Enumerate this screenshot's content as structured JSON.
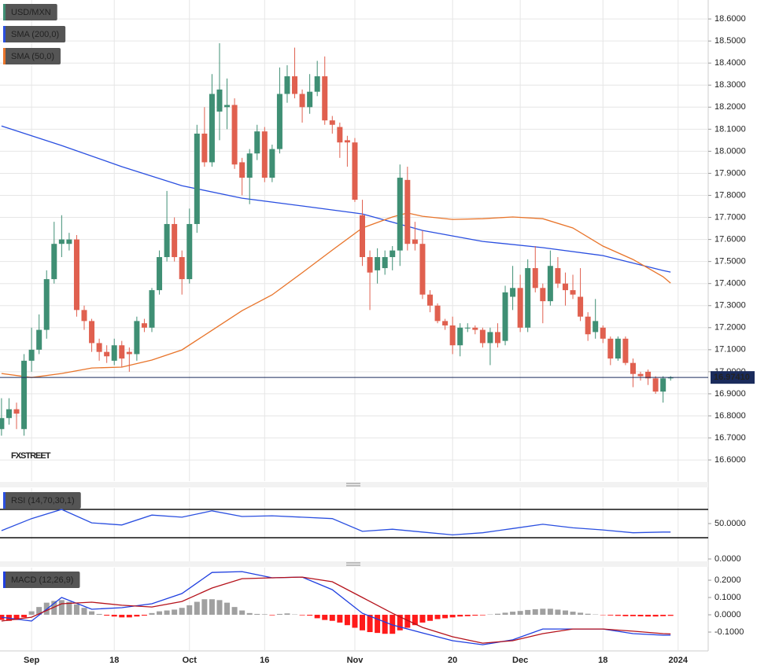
{
  "chart_data": [
    {
      "type": "candlestick",
      "xlim": [
        -0.2,
        94
      ],
      "ylim": [
        16.504,
        18.686
      ],
      "yticks": [
        {
          "value": 16.6,
          "label": "16.6000"
        },
        {
          "value": 16.7,
          "label": "16.7000"
        },
        {
          "value": 16.8,
          "label": "16.8000"
        },
        {
          "value": 16.9,
          "label": "16.9000"
        },
        {
          "value": 17.0,
          "label": "17.0000"
        },
        {
          "value": 17.1,
          "label": "17.1000"
        },
        {
          "value": 17.2,
          "label": "17.2000"
        },
        {
          "value": 17.3,
          "label": "17.3000"
        },
        {
          "value": 17.4,
          "label": "17.4000"
        },
        {
          "value": 17.5,
          "label": "17.5000"
        },
        {
          "value": 17.6,
          "label": "17.6000"
        },
        {
          "value": 17.7,
          "label": "17.7000"
        },
        {
          "value": 17.8,
          "label": "17.8000"
        },
        {
          "value": 17.9,
          "label": "17.9000"
        },
        {
          "value": 18.0,
          "label": "18.0000"
        },
        {
          "value": 18.1,
          "label": "18.1000"
        },
        {
          "value": 18.2,
          "label": "18.2000"
        },
        {
          "value": 18.3,
          "label": "18.3000"
        },
        {
          "value": 18.4,
          "label": "18.4000"
        },
        {
          "value": 18.5,
          "label": "18.5000"
        },
        {
          "value": 18.6,
          "label": "18.6000"
        }
      ],
      "grid": true,
      "watermark": "FXSTREET",
      "last_price": {
        "value": 16.9741,
        "label": "16.97410"
      },
      "last_price_color": "#1a2b5c",
      "series": [
        {
          "name": "USD/MXN",
          "color": "#3f8f74",
          "down_color": "#e0604f",
          "open": [
            16.74,
            16.79,
            16.83,
            16.74,
            17.05,
            17.1,
            17.19,
            17.42,
            17.58,
            17.58,
            17.6,
            17.28,
            17.23,
            17.13,
            17.09,
            17.05,
            17.12,
            17.09,
            17.08,
            17.22,
            17.2,
            17.37,
            17.52,
            17.67,
            17.52,
            17.42,
            17.67,
            18.08,
            17.95,
            18.18,
            18.2,
            18.21,
            17.95,
            17.88,
            17.99,
            18.09,
            17.88,
            18.01,
            18.26,
            18.34,
            18.26,
            18.2,
            18.27,
            18.34,
            18.14,
            18.11,
            18.05,
            18.04,
            17.71,
            17.52,
            17.46,
            17.47,
            17.52,
            17.55,
            17.87,
            17.6,
            17.58,
            17.35,
            17.3,
            17.23,
            17.21,
            17.12,
            17.2,
            17.2,
            17.19,
            17.13,
            17.18,
            17.14,
            17.34,
            17.38,
            17.2,
            17.47,
            17.38,
            17.32,
            17.47,
            17.4,
            17.37,
            17.34,
            17.25,
            17.18,
            17.2,
            17.15,
            17.06,
            17.15,
            17.04,
            16.99,
            17.0,
            16.97,
            16.91,
            16.97
          ],
          "high": [
            16.88,
            16.88,
            16.86,
            17.08,
            17.2,
            17.26,
            17.46,
            17.68,
            17.71,
            17.63,
            17.62,
            17.3,
            17.24,
            17.15,
            17.12,
            17.15,
            17.14,
            17.11,
            17.25,
            17.24,
            17.38,
            17.55,
            17.82,
            17.7,
            17.55,
            17.74,
            18.12,
            18.2,
            18.35,
            18.49,
            18.33,
            18.24,
            17.97,
            18.01,
            18.12,
            18.11,
            18.03,
            18.38,
            18.39,
            18.47,
            18.28,
            18.35,
            18.41,
            18.43,
            18.16,
            18.13,
            18.07,
            18.06,
            17.78,
            17.55,
            17.56,
            17.55,
            17.57,
            17.94,
            17.93,
            17.68,
            17.64,
            17.37,
            17.31,
            17.24,
            17.25,
            17.22,
            17.22,
            17.21,
            17.2,
            17.2,
            17.22,
            17.39,
            17.48,
            17.44,
            17.51,
            17.57,
            17.4,
            17.55,
            17.52,
            17.45,
            17.44,
            17.47,
            17.27,
            17.33,
            17.21,
            17.16,
            17.16,
            17.16,
            17.06,
            17.0,
            17.01,
            16.98,
            16.98,
            16.98
          ],
          "low": [
            16.71,
            16.76,
            16.74,
            16.71,
            17.0,
            17.08,
            17.15,
            17.4,
            17.52,
            17.55,
            17.25,
            17.19,
            17.09,
            17.05,
            17.04,
            17.03,
            17.02,
            17.0,
            17.05,
            17.18,
            17.18,
            17.35,
            17.5,
            17.5,
            17.35,
            17.4,
            17.63,
            17.93,
            17.93,
            18.05,
            18.1,
            17.92,
            17.8,
            17.76,
            17.96,
            17.86,
            17.86,
            17.99,
            18.22,
            18.24,
            18.13,
            18.17,
            18.25,
            18.12,
            18.08,
            17.97,
            17.93,
            17.77,
            17.48,
            17.28,
            17.4,
            17.44,
            17.46,
            17.48,
            17.55,
            17.55,
            17.33,
            17.27,
            17.22,
            17.19,
            17.08,
            17.07,
            17.18,
            17.17,
            17.11,
            17.03,
            17.11,
            17.12,
            17.28,
            17.18,
            17.18,
            17.36,
            17.22,
            17.3,
            17.38,
            17.3,
            17.33,
            17.23,
            17.14,
            17.15,
            17.13,
            17.03,
            17.05,
            17.03,
            16.93,
            16.96,
            16.94,
            16.9,
            16.86,
            16.96
          ],
          "close": [
            16.79,
            16.83,
            16.81,
            17.05,
            17.1,
            17.19,
            17.42,
            17.58,
            17.6,
            17.6,
            17.28,
            17.23,
            17.13,
            17.09,
            17.07,
            17.12,
            17.06,
            17.08,
            17.23,
            17.2,
            17.37,
            17.52,
            17.67,
            17.52,
            17.42,
            17.67,
            18.08,
            17.95,
            18.26,
            18.28,
            18.21,
            17.94,
            17.88,
            17.99,
            18.09,
            17.88,
            18.01,
            18.26,
            18.34,
            18.26,
            18.2,
            18.27,
            18.34,
            18.14,
            18.12,
            18.04,
            18.04,
            17.78,
            17.52,
            17.45,
            17.52,
            17.52,
            17.55,
            17.88,
            17.58,
            17.58,
            17.35,
            17.3,
            17.23,
            17.21,
            17.12,
            17.2,
            17.2,
            17.19,
            17.13,
            17.18,
            17.13,
            17.36,
            17.38,
            17.2,
            17.47,
            17.38,
            17.32,
            17.48,
            17.4,
            17.37,
            17.35,
            17.25,
            17.17,
            17.23,
            17.15,
            17.06,
            17.15,
            17.04,
            16.99,
            16.98,
            16.97,
            16.91,
            16.97,
            16.974
          ]
        },
        {
          "name": "SMA (200,0)",
          "color": "#2a4fe0",
          "x": [
            0,
            8,
            16,
            24,
            32,
            40,
            48,
            56,
            64,
            72,
            80,
            88,
            89
          ],
          "values": [
            18.115,
            18.026,
            17.93,
            17.844,
            17.787,
            17.752,
            17.716,
            17.641,
            17.591,
            17.563,
            17.527,
            17.459,
            17.452
          ]
        },
        {
          "name": "SMA (50,0)",
          "color": "#e8742a",
          "x": [
            0,
            4,
            8,
            12,
            16,
            20,
            24,
            28,
            32,
            36,
            40,
            44,
            48,
            52,
            54,
            56,
            60,
            64,
            68,
            72,
            76,
            80,
            84,
            88,
            89
          ],
          "values": [
            16.992,
            16.974,
            16.992,
            17.017,
            17.021,
            17.053,
            17.099,
            17.188,
            17.277,
            17.349,
            17.449,
            17.552,
            17.652,
            17.702,
            17.72,
            17.705,
            17.691,
            17.694,
            17.702,
            17.694,
            17.652,
            17.57,
            17.509,
            17.431,
            17.402
          ]
        }
      ]
    },
    {
      "type": "line",
      "xlim": [
        -0.2,
        94
      ],
      "ylim": [
        -3.3,
        100
      ],
      "yticks": [
        {
          "value": 50,
          "label": "50.0000"
        },
        {
          "value": 0,
          "label": "0.0000"
        }
      ],
      "levels": [
        70,
        30
      ],
      "series": [
        {
          "name": "RSI (14,70,30,1)",
          "color": "#2a4fe0",
          "x": [
            0,
            4,
            8,
            12,
            16,
            20,
            24,
            28,
            32,
            36,
            40,
            44,
            48,
            52,
            56,
            60,
            64,
            68,
            72,
            76,
            80,
            84,
            88,
            89
          ],
          "values": [
            40,
            57,
            70,
            51,
            48,
            62,
            59,
            68,
            60,
            61,
            59,
            57,
            39,
            42,
            38,
            34,
            37,
            43,
            49,
            44,
            41,
            37,
            38,
            38
          ]
        }
      ]
    },
    {
      "type": "macd",
      "xlim": [
        -0.2,
        94
      ],
      "ylim": [
        -0.209,
        0.273
      ],
      "yticks": [
        {
          "value": 0.2,
          "label": "0.2000"
        },
        {
          "value": 0.1,
          "label": "0.1000"
        },
        {
          "value": 0,
          "label": "0.0000"
        },
        {
          "value": -0.1,
          "label": "-0.1000"
        }
      ],
      "xticks": [
        {
          "value": 4,
          "label": "Sep"
        },
        {
          "value": 15,
          "label": "18"
        },
        {
          "value": 25,
          "label": "Oct"
        },
        {
          "value": 35,
          "label": "16"
        },
        {
          "value": 47,
          "label": "Nov"
        },
        {
          "value": 60,
          "label": "20"
        },
        {
          "value": 69,
          "label": "Dec"
        },
        {
          "value": 80,
          "label": "18"
        },
        {
          "value": 90,
          "label": "2024"
        }
      ],
      "series": [
        {
          "name": "MACD (12,26,9)",
          "color": "#1f3fe0",
          "x": [
            0,
            4,
            8,
            12,
            16,
            20,
            24,
            28,
            32,
            36,
            40,
            44,
            48,
            52,
            56,
            60,
            64,
            68,
            72,
            76,
            80,
            84,
            88,
            89
          ],
          "values": [
            -0.014,
            -0.036,
            0.1,
            0.032,
            0.041,
            0.064,
            0.123,
            0.245,
            0.25,
            0.214,
            0.218,
            0.145,
            0.009,
            -0.059,
            -0.105,
            -0.15,
            -0.173,
            -0.145,
            -0.082,
            -0.082,
            -0.082,
            -0.109,
            -0.118,
            -0.118
          ]
        },
        {
          "color": "#b5121b",
          "x": [
            0,
            4,
            8,
            12,
            16,
            20,
            24,
            28,
            32,
            36,
            40,
            44,
            48,
            52,
            56,
            60,
            64,
            68,
            72,
            76,
            80,
            84,
            88,
            89
          ],
          "values": [
            -0.036,
            -0.014,
            0.064,
            0.073,
            0.055,
            0.045,
            0.077,
            0.155,
            0.209,
            0.214,
            0.218,
            0.191,
            0.1,
            0.009,
            -0.073,
            -0.127,
            -0.164,
            -0.15,
            -0.109,
            -0.082,
            -0.082,
            -0.095,
            -0.109,
            -0.111
          ]
        }
      ],
      "histogram": {
        "up_color": "#a0a0a0",
        "down_color": "#ff1a1a",
        "values": [
          -0.03,
          -0.035,
          -0.03,
          -0.015,
          0.02,
          0.045,
          0.07,
          0.08,
          0.085,
          0.075,
          0.06,
          0.04,
          0.02,
          0.005,
          -0.005,
          -0.01,
          -0.015,
          -0.015,
          -0.01,
          -0.005,
          0.01,
          0.02,
          0.025,
          0.03,
          0.04,
          0.055,
          0.075,
          0.09,
          0.09,
          0.085,
          0.07,
          0.045,
          0.025,
          0.01,
          0.005,
          0.003,
          -0.003,
          0.005,
          0.008,
          0.002,
          -0.003,
          -0.005,
          -0.02,
          -0.03,
          -0.035,
          -0.045,
          -0.06,
          -0.075,
          -0.09,
          -0.1,
          -0.105,
          -0.11,
          -0.11,
          -0.09,
          -0.075,
          -0.06,
          -0.045,
          -0.035,
          -0.025,
          -0.02,
          -0.015,
          -0.01,
          -0.008,
          -0.005,
          -0.003,
          0.002,
          0.006,
          0.012,
          0.018,
          0.022,
          0.028,
          0.032,
          0.035,
          0.035,
          0.03,
          0.025,
          0.018,
          0.012,
          0.006,
          0.002,
          -0.002,
          -0.004,
          -0.006,
          -0.008,
          -0.008,
          -0.009,
          -0.01,
          -0.01,
          -0.008,
          -0.006
        ]
      }
    }
  ]
}
